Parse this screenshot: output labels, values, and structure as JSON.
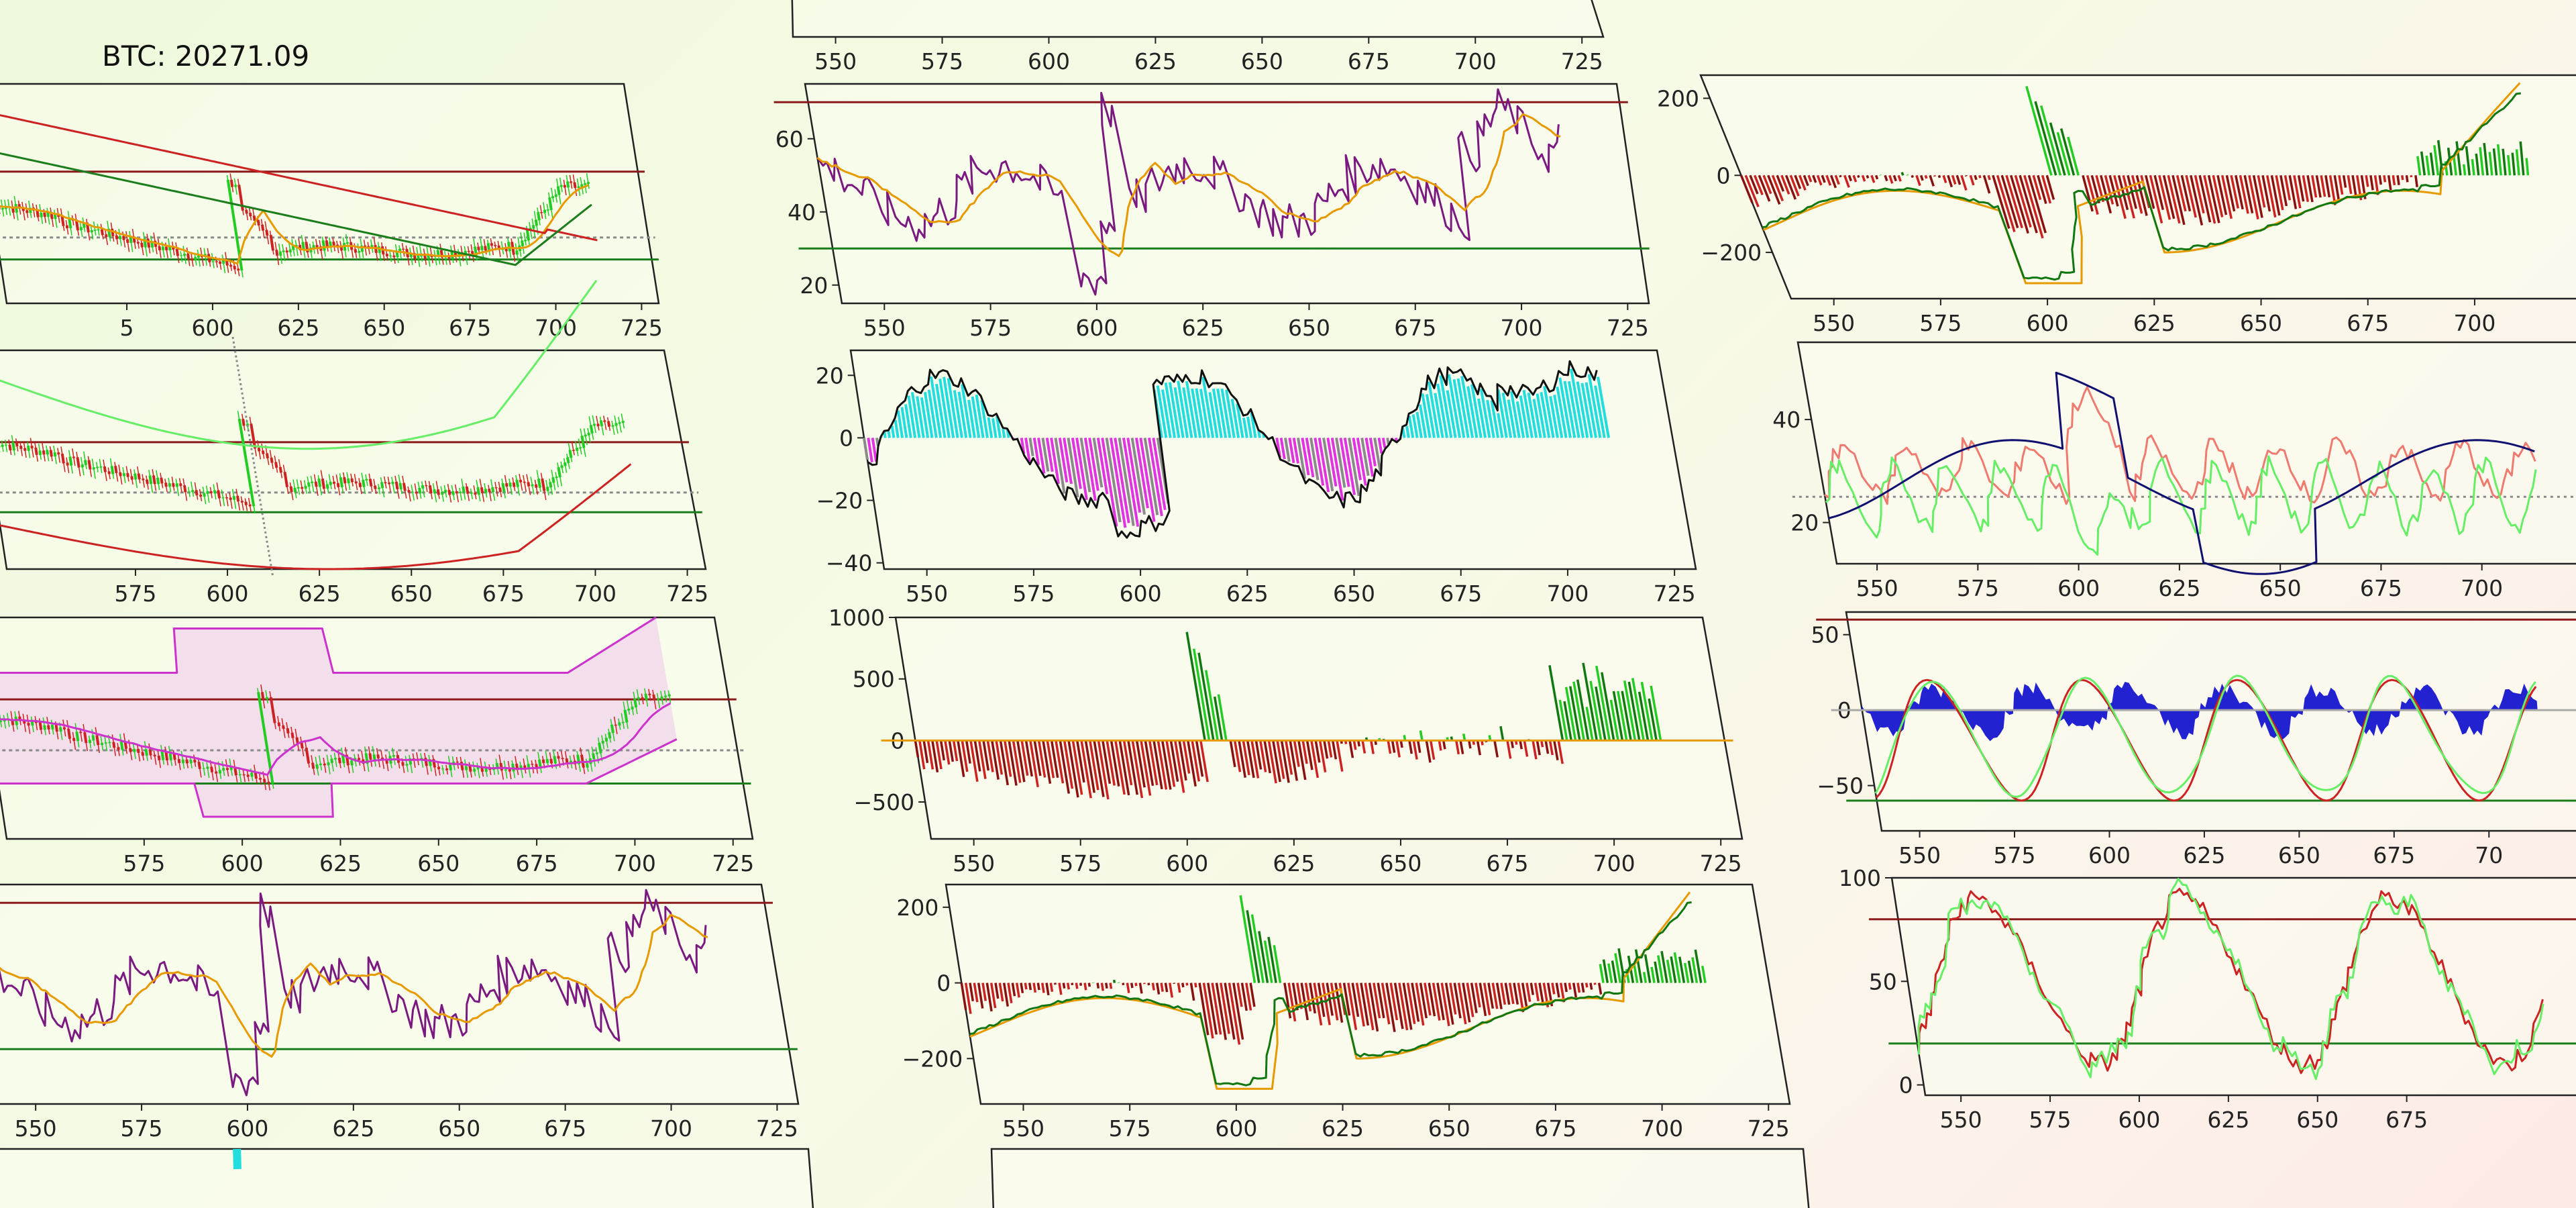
{
  "ticker": {
    "symbol": "BTC",
    "price": "20271.09",
    "label": "BTC: 20271.09"
  },
  "colors": {
    "frame": "#222222",
    "panel_bg": "#fbfdf0",
    "price_up": "#22cc22",
    "price_down": "#cc2222",
    "ma_fast": "#e69a00",
    "line_purple": "#7a1a80",
    "level_high": "#8b1a1a",
    "level_low": "#1b7d1b",
    "bb": "#cc33cc",
    "bb_fill": "#f1d6ec",
    "cyan": "#22dddd",
    "magenta": "#e034e0",
    "gray": "#8a8a8a",
    "hist_green": "#22cc22",
    "hist_red": "#cc2222",
    "navy": "#101070",
    "salmon": "#ee7a70",
    "light_green": "#66ee66",
    "blue_fill": "#0a0acc"
  },
  "chart_data": [
    {
      "name": "price-overlay-ma",
      "type": "line",
      "x_ticks": [
        "5",
        "600",
        "625",
        "650",
        "675",
        "700",
        "725"
      ],
      "y_ticks": []
    },
    {
      "name": "price-envelope",
      "type": "line",
      "x_ticks": [
        "575",
        "600",
        "625",
        "650",
        "675",
        "700",
        "725"
      ],
      "y_ticks": []
    },
    {
      "name": "price-bollinger",
      "type": "area",
      "x_ticks": [
        "575",
        "600",
        "625",
        "650",
        "675",
        "700",
        "725"
      ],
      "y_ticks": []
    },
    {
      "name": "rsi-left",
      "type": "line",
      "x_ticks": [
        "550",
        "575",
        "600",
        "625",
        "650",
        "675",
        "700",
        "725"
      ],
      "y_ticks": []
    },
    {
      "name": "macd-top-partial",
      "type": "bar",
      "x_ticks": [
        "550",
        "575",
        "600",
        "625",
        "650",
        "675",
        "700",
        "725"
      ],
      "y_ticks": []
    },
    {
      "name": "rsi-mid",
      "type": "line",
      "x_ticks": [
        "550",
        "575",
        "600",
        "625",
        "650",
        "675",
        "700",
        "725"
      ],
      "y_ticks": [
        "20",
        "40",
        "60"
      ],
      "ylim": [
        15,
        75
      ],
      "levels": [
        70,
        30
      ]
    },
    {
      "name": "momentum-mid",
      "type": "area",
      "x_ticks": [
        "550",
        "575",
        "600",
        "625",
        "650",
        "675",
        "700",
        "725"
      ],
      "y_ticks": [
        "20",
        "0",
        "−20",
        "−40"
      ],
      "ylim": [
        -42,
        28
      ]
    },
    {
      "name": "volume-osc-mid",
      "type": "bar",
      "x_ticks": [
        "550",
        "575",
        "600",
        "625",
        "650",
        "675",
        "700",
        "725"
      ],
      "y_ticks": [
        "1000",
        "500",
        "0",
        "−500"
      ],
      "ylim": [
        -800,
        1000
      ]
    },
    {
      "name": "macd-mid",
      "type": "bar",
      "x_ticks": [
        "550",
        "575",
        "600",
        "625",
        "650",
        "675",
        "700",
        "725"
      ],
      "y_ticks": [
        "200",
        "0",
        "−200"
      ],
      "ylim": [
        -320,
        260
      ]
    },
    {
      "name": "macd-right",
      "type": "bar",
      "x_ticks": [
        "550",
        "575",
        "600",
        "625",
        "650",
        "675",
        "700",
        "7"
      ],
      "y_ticks": [
        "200",
        "0",
        "−200"
      ],
      "ylim": [
        -320,
        260
      ]
    },
    {
      "name": "adx-right",
      "type": "line",
      "x_ticks": [
        "550",
        "575",
        "600",
        "625",
        "650",
        "675",
        "700"
      ],
      "y_ticks": [
        "40",
        "20"
      ],
      "ylim": [
        12,
        55
      ]
    },
    {
      "name": "stoch-osc-right",
      "type": "area",
      "x_ticks": [
        "550",
        "575",
        "600",
        "625",
        "650",
        "675",
        "70"
      ],
      "y_ticks": [
        "50",
        "0",
        "−50"
      ],
      "ylim": [
        -80,
        65
      ],
      "levels": [
        60,
        -60
      ]
    },
    {
      "name": "stoch-right",
      "type": "line",
      "x_ticks": [
        "550",
        "575",
        "600",
        "625",
        "650",
        "675"
      ],
      "y_ticks": [
        "100",
        "50",
        "0"
      ],
      "ylim": [
        -5,
        100
      ],
      "levels": [
        80,
        20
      ]
    },
    {
      "name": "bottom-partial-left",
      "type": "area",
      "x_ticks": [],
      "y_ticks": []
    },
    {
      "name": "bottom-partial-mid",
      "type": "line",
      "x_ticks": [],
      "y_ticks": []
    }
  ]
}
